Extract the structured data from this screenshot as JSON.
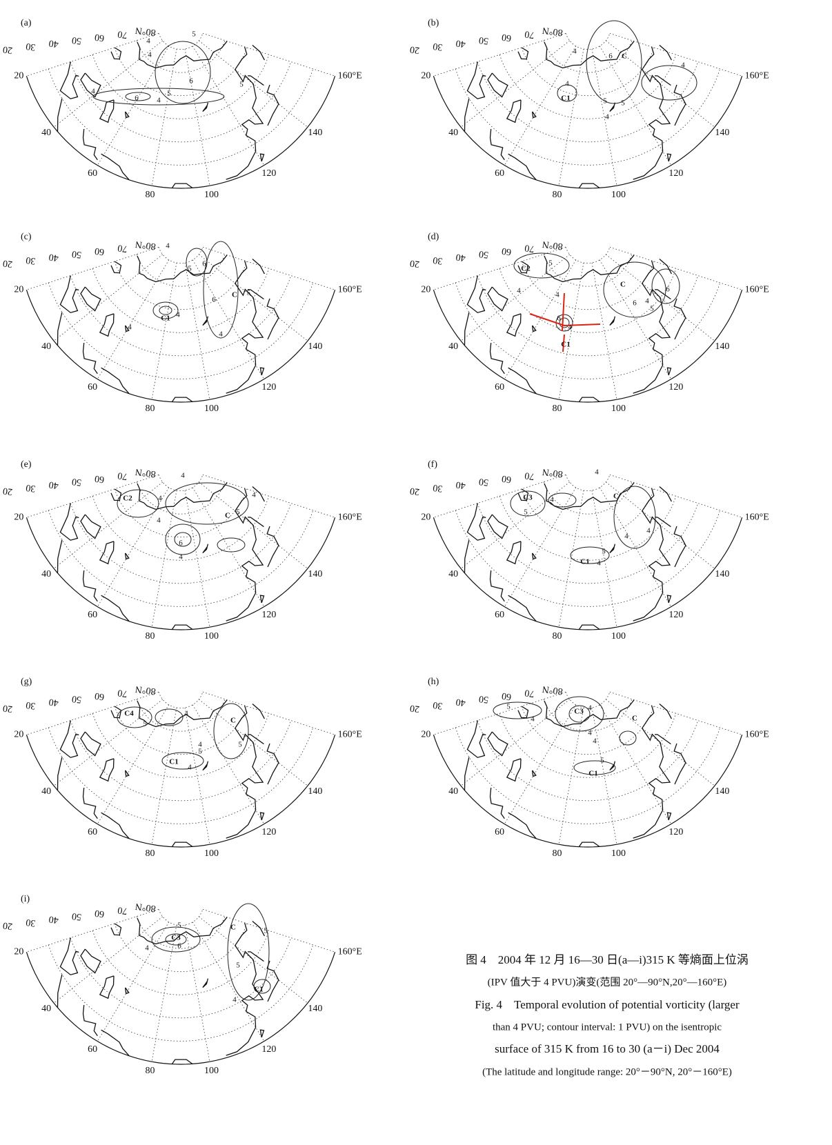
{
  "grid": {
    "lat_labels": [
      "20",
      "30",
      "40",
      "50",
      "60",
      "70",
      "80°N"
    ],
    "lon_labels": [
      "20",
      "40",
      "60",
      "80",
      "100",
      "120",
      "140",
      "160°E"
    ]
  },
  "panels": [
    {
      "label": "(a)",
      "annotations": [
        "4",
        "6",
        "4",
        "5",
        "6",
        "4",
        "5",
        "5",
        "4"
      ]
    },
    {
      "label": "(b)",
      "annotations": [
        "C",
        "6",
        "4",
        "4",
        "C1",
        "5",
        "5",
        "4",
        "4"
      ]
    },
    {
      "label": "(c)",
      "annotations": [
        "C1",
        "4",
        "4",
        "C",
        "5",
        "6",
        "5",
        "6",
        "4",
        "4"
      ]
    },
    {
      "label": "(d)",
      "annotations": [
        "C2",
        "5",
        "4",
        "C",
        "6",
        "5",
        "4",
        "6",
        "4",
        "6",
        "C1",
        "4"
      ]
    },
    {
      "label": "(e)",
      "annotations": [
        "C2",
        "4",
        "4",
        "6",
        "4",
        "C",
        "5",
        "4",
        "4"
      ]
    },
    {
      "label": "(f)",
      "annotations": [
        "C3",
        "5",
        "4",
        "C1",
        "4",
        "5",
        "4",
        "4",
        "C",
        "4"
      ]
    },
    {
      "label": "(g)",
      "annotations": [
        "C4",
        "5",
        "4",
        "C",
        "5",
        "4",
        "5",
        "C1",
        "4"
      ]
    },
    {
      "label": "(h)",
      "annotations": [
        "C3",
        "4",
        "5",
        "4",
        "4",
        "C",
        "4",
        "5",
        "C1"
      ]
    },
    {
      "label": "(i)",
      "annotations": [
        "C3",
        "5",
        "6",
        "4",
        "C",
        "5",
        "5",
        "C1",
        "4"
      ]
    }
  ],
  "caption": {
    "zh_lines": [
      "图 4　2004 年 12 月 16—30 日(a—i)315 K 等熵面上位涡",
      "(IPV 值大于 4 PVU)演变(范围 20°—90°N,20°—160°E)"
    ],
    "en_lines": [
      "Fig. 4　Temporal evolution of potential vorticity (larger",
      "than 4 PVU; contour interval: 1 PVU) on the isentropic",
      "surface of 315 K from 16 to 30 (a－i) Dec 2004",
      "(The latitude and longitude range: 20°－90°N, 20°－160°E)"
    ]
  }
}
